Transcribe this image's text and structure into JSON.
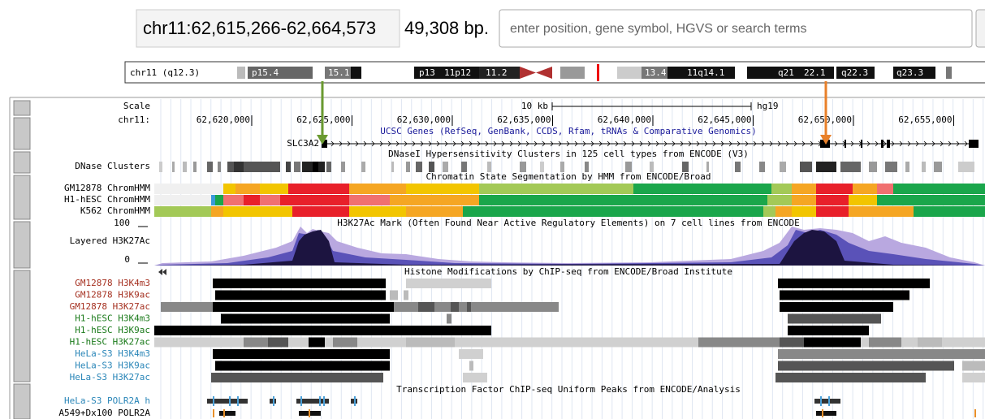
{
  "position": "chr11:62,615,266-62,664,573",
  "size": "49,308 bp.",
  "search_placeholder": "enter position, gene symbol, HGVS or search terms",
  "ideogram": {
    "label": "chr11 (q12.3)",
    "bands": [
      "p15.4",
      "15.1",
      "p13",
      "11p12",
      "11.2",
      "13.4",
      "11q14.1",
      "q21",
      "22.1",
      "q22.3",
      "q23.3"
    ]
  },
  "scale": {
    "label": "Scale",
    "span": "10 kb",
    "assembly": "hg19"
  },
  "ruler": {
    "label": "chr11:",
    "ticks": [
      "62,620,000",
      "62,625,000",
      "62,630,000",
      "62,635,000",
      "62,640,000",
      "62,645,000",
      "62,650,000",
      "62,655,000"
    ]
  },
  "tracks": {
    "gene_title": "UCSC Genes (RefSeq, GenBank, CCDS, Rfam, tRNAs & Comparative Genomics)",
    "gene": "SLC3A2",
    "dnase_title": "DNaseI Hypersensitivity Clusters in 125 cell types from ENCODE (V3)",
    "dnase_label": "DNase Clusters",
    "chromhmm_title": "Chromatin State Segmentation by HMM from ENCODE/Broad",
    "chromhmm_labels": [
      "GM12878 ChromHMM",
      "H1-hESC ChromHMM",
      "K562 ChromHMM"
    ],
    "h3k27ac_title": "H3K27Ac Mark (Often Found Near Active Regulatory Elements) on 7 cell lines from ENCODE",
    "h3k27ac_label": "Layered H3K27Ac",
    "h3k27ac_max": 100,
    "h3k27ac_min": 0,
    "histone_title": "Histone Modifications by ChIP-seq from ENCODE/Broad Institute",
    "histone_labels": [
      "GM12878 H3K4m3",
      "GM12878 H3K9ac",
      "GM12878 H3K27ac",
      "H1-hESC H3K4m3",
      "H1-hESC H3K9ac",
      "H1-hESC H3K27ac",
      "HeLa-S3 H3K4m3",
      "HeLa-S3 H3K9ac",
      "HeLa-S3 H3K27ac"
    ],
    "tf_title": "Transcription Factor ChIP-seq Uniform Peaks from ENCODE/Analysis",
    "tf_labels": [
      "HeLa-S3 POLR2A h",
      "A549+Dx100 POLR2A"
    ]
  }
}
